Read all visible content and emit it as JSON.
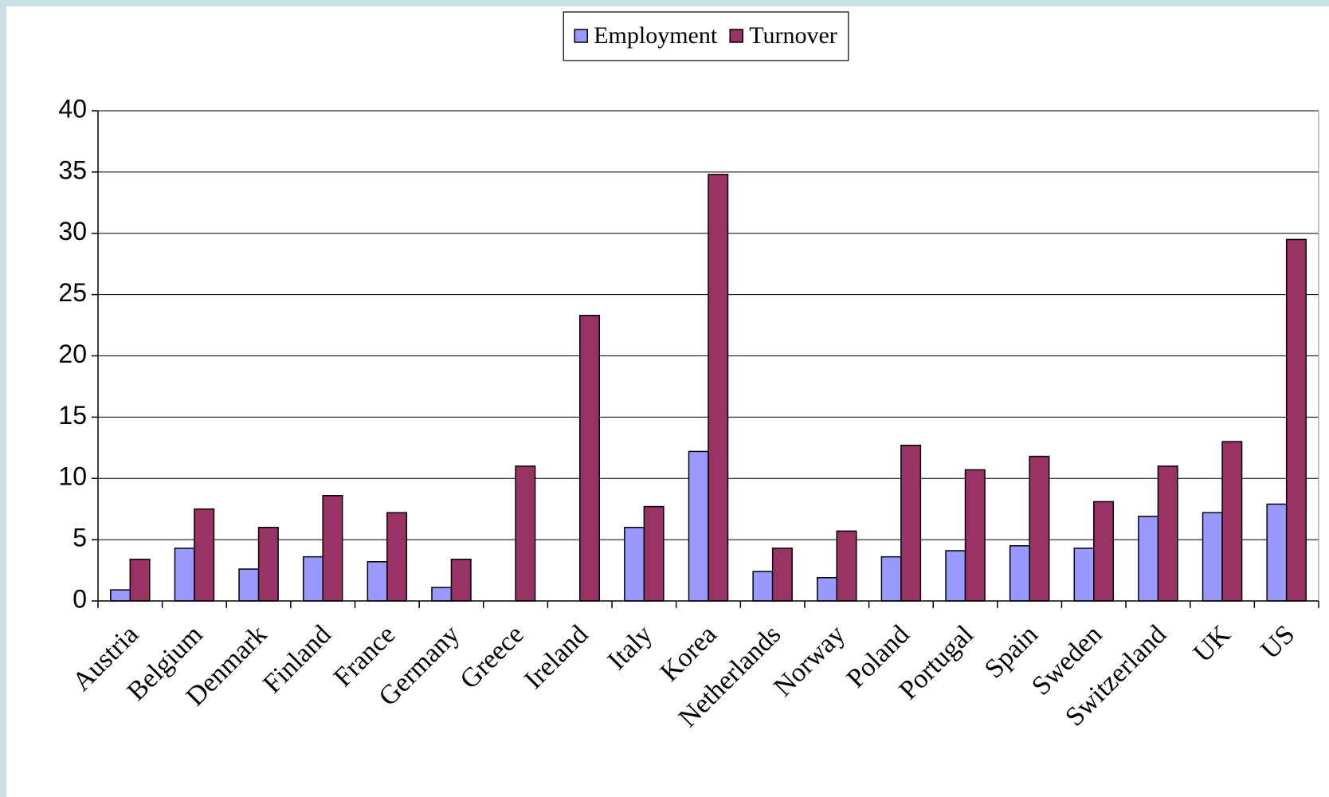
{
  "chart_data": {
    "type": "bar",
    "categories": [
      "Austria",
      "Belgium",
      "Denmark",
      "Finland",
      "France",
      "Germany",
      "Greece",
      "Ireland",
      "Italy",
      "Korea",
      "Netherlands",
      "Norway",
      "Poland",
      "Portugal",
      "Spain",
      "Sweden",
      "Switzerland",
      "UK",
      "US"
    ],
    "series": [
      {
        "name": "Employment",
        "color": "#9999ff",
        "values": [
          0.9,
          4.3,
          2.6,
          3.6,
          3.2,
          1.1,
          null,
          null,
          6.0,
          12.2,
          2.4,
          1.9,
          3.6,
          4.1,
          4.5,
          4.3,
          6.9,
          7.2,
          7.9
        ]
      },
      {
        "name": "Turnover",
        "color": "#993366",
        "values": [
          3.4,
          7.5,
          6.0,
          8.6,
          7.2,
          3.4,
          11.0,
          23.3,
          7.7,
          34.8,
          4.3,
          5.7,
          12.7,
          10.7,
          11.8,
          8.1,
          11.0,
          13.0,
          29.5
        ]
      }
    ],
    "ylim": [
      0,
      40
    ],
    "yticks": [
      0,
      5,
      10,
      15,
      20,
      25,
      30,
      35,
      40
    ],
    "grid": true,
    "legend": "top"
  }
}
